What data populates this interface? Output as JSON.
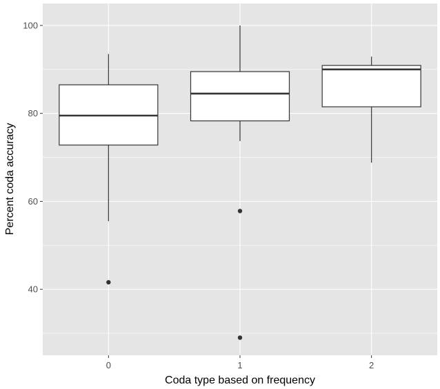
{
  "chart_data": {
    "type": "box",
    "title": "",
    "xlabel": "Coda type based on frequency",
    "ylabel": "Percent coda accuracy",
    "categories": [
      "0",
      "1",
      "2"
    ],
    "ylim": [
      25,
      105
    ],
    "y_ticks": [
      40,
      60,
      80,
      100
    ],
    "y_tick_labels": [
      "40",
      "60",
      "80",
      "100"
    ],
    "grid": true,
    "legend": "none",
    "boxes": [
      {
        "category": "0",
        "whisker_low": 55.5,
        "q1": 72.8,
        "median": 79.5,
        "q3": 86.5,
        "whisker_high": 93.5,
        "outliers": [
          41.6
        ]
      },
      {
        "category": "1",
        "whisker_low": 73.7,
        "q1": 78.3,
        "median": 84.5,
        "q3": 89.5,
        "whisker_high": 100.0,
        "outliers": [
          57.8,
          29.0
        ]
      },
      {
        "category": "2",
        "whisker_low": 68.8,
        "q1": 81.5,
        "median": 90.0,
        "q3": 90.9,
        "whisker_high": 92.9,
        "outliers": []
      }
    ],
    "colors": {
      "panel_background": "#e5e5e5",
      "grid": "#ffffff",
      "box_fill": "#ffffff",
      "box_line": "#333333",
      "outlier": "#333333"
    }
  }
}
